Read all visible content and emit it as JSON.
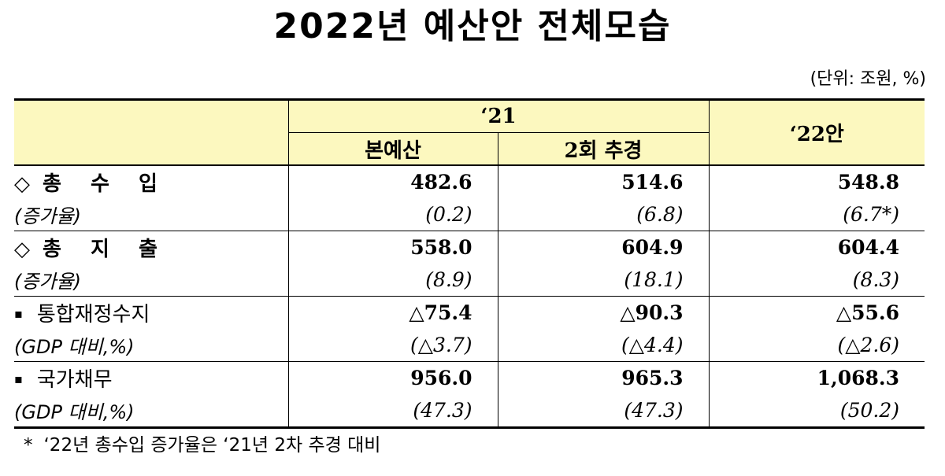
{
  "title": "2022년 예산안 전체모습",
  "unit": "(단위: 조원, %)",
  "header": {
    "group": "‘21",
    "col_main": "본예산",
    "col_supp": "2회 추경",
    "col_next": "‘22안"
  },
  "rows": {
    "revenue": {
      "label": "총 수 입",
      "values": [
        "482.6",
        "514.6",
        "548.8"
      ],
      "sub_label": "(증가율)",
      "sub_values": [
        "(0.2)",
        "(6.8)",
        "(6.7*)"
      ]
    },
    "expenditure": {
      "label": "총 지 출",
      "values": [
        "558.0",
        "604.9",
        "604.4"
      ],
      "sub_label": "(증가율)",
      "sub_values": [
        "(8.9)",
        "(18.1)",
        "(8.3)"
      ]
    },
    "balance": {
      "label": "통합재정수지",
      "values": [
        "△75.4",
        "△90.3",
        "△55.6"
      ],
      "sub_label": "(GDP 대비,%)",
      "sub_values": [
        "(△3.7)",
        "(△4.4)",
        "(△2.6)"
      ]
    },
    "debt": {
      "label": "국가채무",
      "values": [
        "956.0",
        "965.3",
        "1,068.3"
      ],
      "sub_label": "(GDP 대비,%)",
      "sub_values": [
        "(47.3)",
        "(47.3)",
        "(50.2)"
      ]
    }
  },
  "symbols": {
    "diamond": "◇",
    "bullet": "▪"
  },
  "footnote": {
    "marker": "*",
    "text": "‘22년 총수입 증가율은 ‘21년 2차 추경 대비"
  }
}
